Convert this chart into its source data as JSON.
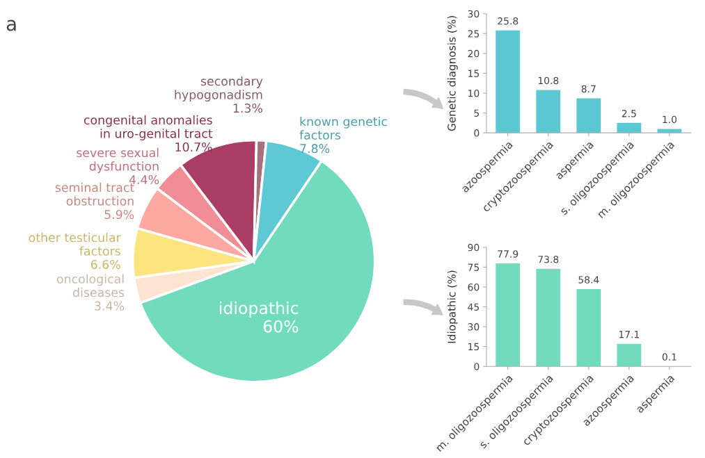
{
  "chart_data": [
    {
      "type": "pie",
      "annotations": [
        "a"
      ],
      "data_labels": true,
      "categories": [
        "idiopathic",
        "oncological\ndiseases",
        "other testicular\nfactors",
        "seminal tract\nobstruction",
        "severe sexual\ndysfunction",
        "congenital anomalies\nin uro-genital tract",
        "secondary\nhypogonadism",
        "known genetic\nfactors"
      ],
      "values": [
        60,
        3.4,
        6.6,
        5.9,
        4.4,
        10.7,
        1.3,
        7.8
      ],
      "value_labels": [
        "60%",
        "3.4%",
        "6.6%",
        "5.9%",
        "4.4%",
        "10.7%",
        "1.3%",
        "7.8%"
      ],
      "colors": [
        "#72dbbd",
        "#fde3d2",
        "#fde47f",
        "#fda8a0",
        "#f08d96",
        "#a93d63",
        "#a4727a",
        "#5ec8d4"
      ]
    },
    {
      "type": "bar",
      "ylabel": "Genetic diagnosis (%)",
      "data_labels": true,
      "color": "#5bc8d3",
      "categories": [
        "azoospermia",
        "cryptozoospermia",
        "aspermia",
        "s. oligozoospermia",
        "m. oligozoospermia"
      ],
      "values": [
        25.8,
        10.8,
        8.7,
        2.5,
        1.0
      ],
      "value_labels": [
        "25.8",
        "10.8",
        "8.7",
        "2.5",
        "1.0"
      ],
      "ylim": [
        0,
        30
      ],
      "yticks": [
        0,
        5,
        10,
        15,
        20,
        25,
        30
      ],
      "grid": false
    },
    {
      "type": "bar",
      "ylabel": "Idiopathic (%)",
      "data_labels": true,
      "color": "#72dbbd",
      "categories": [
        "m. oligozoospermia",
        "s. oligozoospermia",
        "cryptozoospermia",
        "azoospermia",
        "aspermia"
      ],
      "values": [
        77.9,
        73.8,
        58.4,
        17.1,
        0.1
      ],
      "value_labels": [
        "77.9",
        "73.8",
        "58.4",
        "17.1",
        "0.1"
      ],
      "ylim": [
        0,
        90
      ],
      "yticks": [
        0,
        15,
        30,
        45,
        60,
        75,
        90
      ],
      "grid": false
    }
  ]
}
